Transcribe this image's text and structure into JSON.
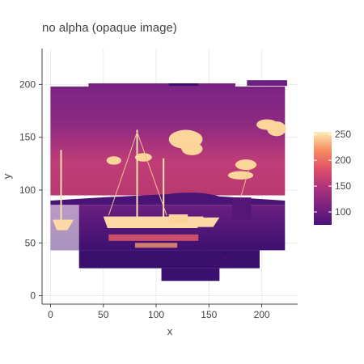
{
  "chart_data": {
    "type": "heatmap",
    "title": "no alpha (opaque image)",
    "xlabel": "x",
    "ylabel": "y",
    "xlim": [
      -8,
      234
    ],
    "ylim": [
      -8,
      234
    ],
    "x_ticks": [
      0,
      50,
      100,
      150,
      200
    ],
    "y_ticks": [
      0,
      50,
      100,
      150,
      200
    ],
    "grid": true,
    "colorbar": {
      "ticks": [
        100,
        150,
        200,
        250
      ],
      "range": [
        75,
        255
      ],
      "colorscale": [
        "#3a0f6e",
        "#6b1f80",
        "#9b2a7f",
        "#d6456d",
        "#f07a5a",
        "#f9b07a",
        "#fde9b0"
      ]
    },
    "image_extent": {
      "x": [
        0,
        224
      ],
      "y": [
        0,
        204
      ]
    },
    "content_description_only_visual": "photo of harbour with sailboats at sunset mapped to a colorscale"
  }
}
